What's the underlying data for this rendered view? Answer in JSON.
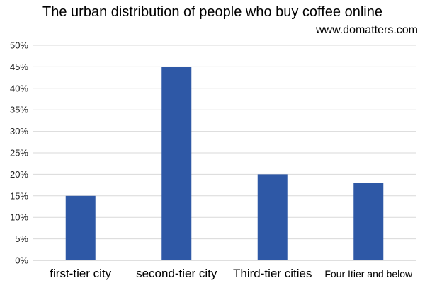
{
  "chart_data": {
    "type": "bar",
    "title": "The urban distribution of people who buy coffee online",
    "source_text": "www.domatters.com",
    "categories": [
      "first-tier city",
      "second-tier city",
      "Third-tier cities",
      "Four Itier and below"
    ],
    "series": [
      {
        "values": [
          15,
          45,
          20,
          18
        ]
      }
    ],
    "ylim": [
      0,
      50
    ],
    "y_ticks": [
      "0%",
      "5%",
      "10%",
      "15%",
      "20%",
      "25%",
      "30%",
      "35%",
      "40%",
      "45%",
      "50%"
    ],
    "xlabel": "",
    "ylabel": "",
    "grid": true,
    "legend": "none",
    "bar_color": "#2e58a6"
  }
}
